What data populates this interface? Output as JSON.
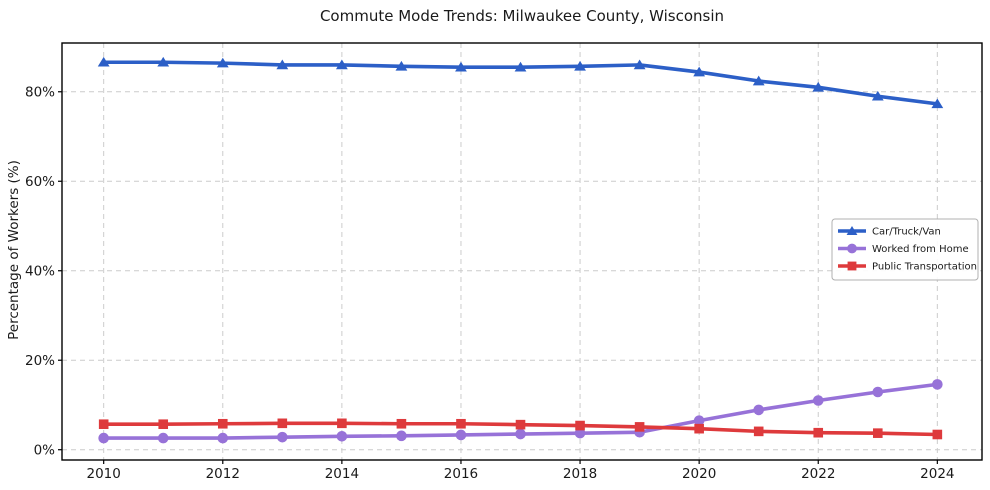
{
  "chart_data": {
    "type": "line",
    "title": "Commute Mode Trends: Milwaukee County, Wisconsin",
    "ylabel": "Percentage of Workers (%)",
    "xlabel": "",
    "x": [
      2010,
      2011,
      2012,
      2013,
      2014,
      2015,
      2016,
      2017,
      2018,
      2019,
      2020,
      2021,
      2022,
      2023,
      2024
    ],
    "series": [
      {
        "name": "Car/Truck/Van",
        "color": "#2c5fc7",
        "marker": "triangle",
        "values": [
          86.6,
          86.6,
          86.4,
          86.0,
          86.0,
          85.7,
          85.5,
          85.5,
          85.7,
          86.0,
          84.4,
          82.4,
          81.0,
          79.0,
          77.3
        ]
      },
      {
        "name": "Worked from Home",
        "color": "#9772d8",
        "marker": "circle",
        "values": [
          2.6,
          2.6,
          2.6,
          2.8,
          3.0,
          3.1,
          3.3,
          3.5,
          3.7,
          3.9,
          6.5,
          8.9,
          11.0,
          12.9,
          14.6
        ]
      },
      {
        "name": "Public Transportation",
        "color": "#de3a3c",
        "marker": "square",
        "values": [
          5.7,
          5.7,
          5.8,
          5.9,
          5.9,
          5.8,
          5.8,
          5.6,
          5.4,
          5.1,
          4.7,
          4.1,
          3.8,
          3.7,
          3.4
        ]
      }
    ],
    "xticks": [
      2010,
      2012,
      2014,
      2016,
      2018,
      2020,
      2022,
      2024
    ],
    "xtick_labels": [
      "2010",
      "2012",
      "2014",
      "2016",
      "2018",
      "2020",
      "2022",
      "2024"
    ],
    "ytick_values": [
      0,
      20,
      40,
      60,
      80
    ],
    "ytick_labels": [
      "0%",
      "20%",
      "40%",
      "60%",
      "80%"
    ],
    "xlim": [
      2009.3,
      2024.75
    ],
    "ylim": [
      -2.3,
      90.9
    ],
    "grid": true,
    "grid_style": "dashed",
    "legend_position": "center-right",
    "colors": {
      "background": "#ffffff",
      "grid": "#cccccc",
      "spine": "#000000",
      "tick_text": "#1a1a1a",
      "legend_border": "#b0b0b0",
      "legend_background": "#ffffff"
    }
  }
}
